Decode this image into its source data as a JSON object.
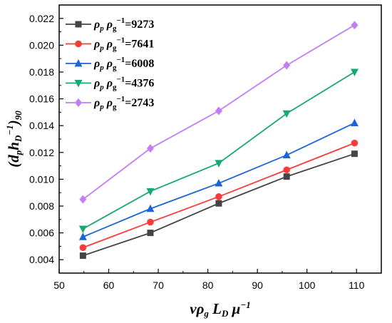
{
  "chart_data": {
    "type": "line",
    "x": [
      54.8,
      68.4,
      82.2,
      95.9,
      109.6
    ],
    "xlim": [
      50,
      115
    ],
    "ylim": [
      0.003,
      0.023
    ],
    "xticks": [
      "50",
      "60",
      "70",
      "80",
      "90",
      "100",
      "110"
    ],
    "yticks": [
      "0.004",
      "0.006",
      "0.008",
      "0.010",
      "0.012",
      "0.014",
      "0.016",
      "0.018",
      "0.020",
      "0.022"
    ],
    "xlabel": "vρg LD μ−1",
    "ylabel": "(dphD−1)90",
    "grid": false,
    "legend_position": "top-left",
    "series": [
      {
        "name": "ρp ρg−1=9273",
        "ratio": "9273",
        "color": "#454545",
        "marker": "square",
        "values": [
          0.0043,
          0.006,
          0.0082,
          0.0102,
          0.0119
        ]
      },
      {
        "name": "ρp ρg−1=7641",
        "ratio": "7641",
        "color": "#fb3a3a",
        "marker": "circle",
        "values": [
          0.0049,
          0.0068,
          0.0087,
          0.0107,
          0.0127
        ]
      },
      {
        "name": "ρp ρg−1=6008",
        "ratio": "6008",
        "color": "#1b64d9",
        "marker": "triangle-up",
        "values": [
          0.0057,
          0.0078,
          0.0097,
          0.0118,
          0.0142
        ]
      },
      {
        "name": "ρp ρg−1=4376",
        "ratio": "4376",
        "color": "#19a872",
        "marker": "triangle-down",
        "values": [
          0.0063,
          0.0091,
          0.0112,
          0.0149,
          0.018
        ]
      },
      {
        "name": "ρp ρg−1=2743",
        "ratio": "2743",
        "color": "#c27ef4",
        "marker": "diamond",
        "values": [
          0.0085,
          0.0123,
          0.0151,
          0.0185,
          0.0215
        ]
      }
    ]
  }
}
